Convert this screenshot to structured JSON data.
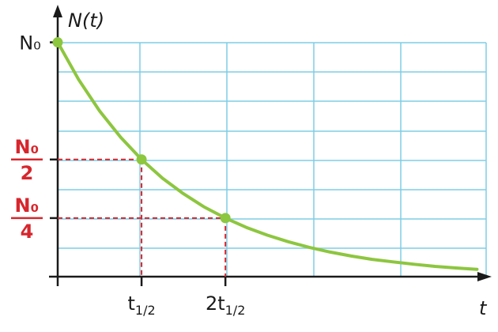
{
  "chart_data": {
    "type": "line",
    "x_label": "t",
    "y_label": "N(t)",
    "xlim": [
      0,
      5.1
    ],
    "ylim": [
      0,
      1.13
    ],
    "xticks": [
      {
        "value": 1,
        "label": "t1/2"
      },
      {
        "value": 2,
        "label": "2t1/2"
      }
    ],
    "yticks": [
      {
        "value": 1,
        "label": "N₀"
      },
      {
        "value": 0.5,
        "label": "N₀/2"
      },
      {
        "value": 0.25,
        "label": "N₀/4"
      }
    ],
    "grid": true,
    "series": [
      {
        "color": "#8dc63f",
        "x": [
          0,
          0.25,
          0.5,
          0.75,
          1,
          1.25,
          1.5,
          1.75,
          2,
          2.25,
          2.5,
          2.75,
          3,
          3.25,
          3.5,
          3.75,
          4,
          4.25,
          4.5,
          4.75,
          5
        ],
        "values": [
          1,
          0.841,
          0.707,
          0.595,
          0.5,
          0.42,
          0.354,
          0.297,
          0.25,
          0.21,
          0.177,
          0.149,
          0.125,
          0.105,
          0.088,
          0.074,
          0.063,
          0.053,
          0.044,
          0.037,
          0.031
        ]
      },
      {
        "color": "#8dc63f",
        "marker": true,
        "x": [
          0,
          1,
          2
        ],
        "values": [
          1,
          0.5,
          0.25
        ]
      }
    ]
  }
}
